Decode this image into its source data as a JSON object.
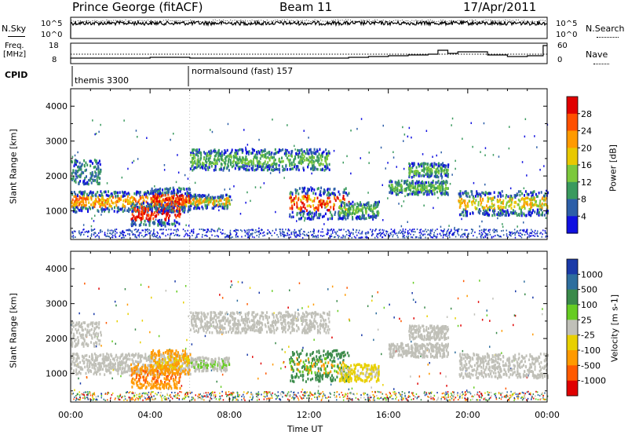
{
  "header": {
    "station": "Prince George (fitACF)",
    "beam": "Beam 11",
    "date": "17/Apr/2011"
  },
  "top_panels": {
    "nsky_label": "N.Sky",
    "nsearch_label": "N.Search",
    "count_ticks": [
      "10^5",
      "10^0"
    ],
    "count_ticks_right": [
      "10^5",
      "10^0"
    ],
    "freq_label": [
      "Freq.",
      "[MHz]"
    ],
    "freq_ticks": [
      "18",
      "8"
    ],
    "nave_label": "Nave",
    "nave_ticks": [
      "60",
      "0"
    ],
    "cpid_label": "CPID",
    "cpid_modes": [
      {
        "name": "themis 3300",
        "start_hour": 0
      },
      {
        "name": "normalsound (fast) 157",
        "start_hour": 6
      }
    ]
  },
  "chart_data": [
    {
      "type": "heatmap",
      "parameter": "power",
      "ylabel": "Slant Range [km]",
      "xlabel": "",
      "x_unit": "hours UT",
      "xlim": [
        0,
        24
      ],
      "ylim": [
        180,
        4500
      ],
      "yticks": [
        1000,
        2000,
        3000,
        4000
      ],
      "colorbar": {
        "label": "Power [dB]",
        "ticks": [
          "28",
          "24",
          "20",
          "16",
          "12",
          "8",
          "4"
        ],
        "colors": [
          "#e00000",
          "#ff5000",
          "#ff9a00",
          "#e8c800",
          "#7cc83c",
          "#3a9a5e",
          "#2d5fa8",
          "#1010e0"
        ]
      },
      "regions": [
        {
          "x": [
            0.0,
            6.0
          ],
          "y": [
            1000,
            1600
          ],
          "level": "16-24 dB"
        },
        {
          "x": [
            3.0,
            5.5
          ],
          "y": [
            600,
            1300
          ],
          "level": "20-28 dB"
        },
        {
          "x": [
            6.0,
            13.0
          ],
          "y": [
            2200,
            2800
          ],
          "level": "12-20 dB"
        },
        {
          "x": [
            11.0,
            14.0
          ],
          "y": [
            800,
            1700
          ],
          "level": "16-28 dB"
        },
        {
          "x": [
            19.5,
            24.0
          ],
          "y": [
            900,
            1700
          ],
          "level": "12-20 dB"
        }
      ]
    },
    {
      "type": "heatmap",
      "parameter": "velocity",
      "ylabel": "Slant Range [km]",
      "xlabel": "Time UT",
      "x_unit": "hours UT",
      "xlim": [
        0,
        24
      ],
      "ylim": [
        180,
        4500
      ],
      "yticks": [
        1000,
        2000,
        3000,
        4000
      ],
      "xtick_labels": [
        "00:00",
        "04:00",
        "08:00",
        "12:00",
        "16:00",
        "20:00",
        "00:00"
      ],
      "colorbar": {
        "label": "Velocity [m s-1]",
        "ticks": [
          "1000",
          "500",
          "100",
          "25",
          "-25",
          "-100",
          "-500",
          "-1000"
        ],
        "colors": [
          "#1a3aa8",
          "#2e6e9e",
          "#3a8a4a",
          "#66cc22",
          "#c0c0b8",
          "#e8d000",
          "#ff9a00",
          "#ff5a00",
          "#e00000"
        ]
      },
      "regions": [
        {
          "x": [
            0.0,
            6.0
          ],
          "y": [
            1000,
            1600
          ],
          "level": "-25 to 25"
        },
        {
          "x": [
            3.0,
            5.5
          ],
          "y": [
            600,
            1300
          ],
          "level": "-100 to -500"
        },
        {
          "x": [
            6.0,
            13.0
          ],
          "y": [
            2200,
            2800
          ],
          "level": "-25 to 25"
        },
        {
          "x": [
            11.0,
            14.0
          ],
          "y": [
            800,
            1700
          ],
          "level": "25 to 100"
        },
        {
          "x": [
            19.5,
            24.0
          ],
          "y": [
            900,
            1700
          ],
          "level": "-25 to 25"
        }
      ]
    }
  ]
}
